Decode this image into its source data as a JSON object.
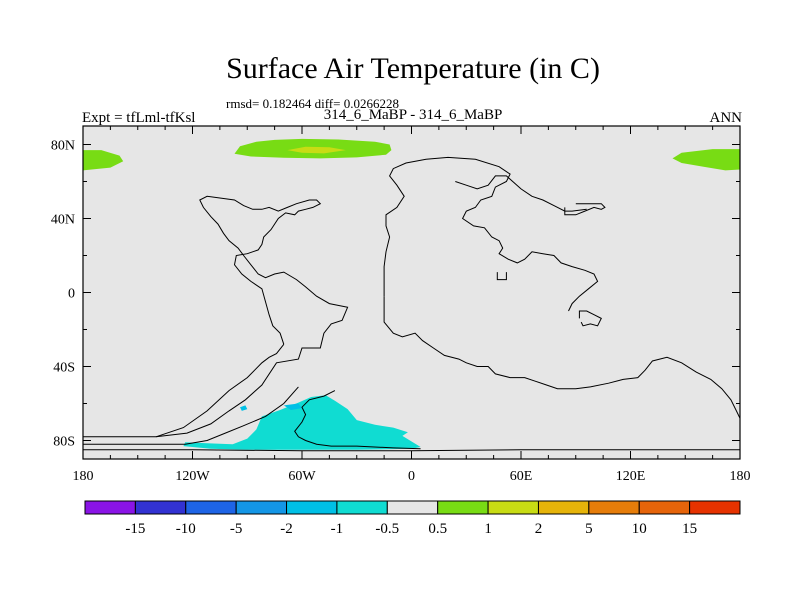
{
  "chart_data": {
    "type": "heatmap",
    "title": "Surface Air Temperature (in C)",
    "stats_label": "rmsd= 0.182464 diff= 0.0266228",
    "left_label": "Expt = tfLml-tfKsl",
    "center_label": "314_6_MaBP - 314_6_MaBP",
    "right_label": "ANN",
    "x_range": [
      -180,
      180
    ],
    "y_range": [
      -90,
      90
    ],
    "x_ticks": [
      {
        "value": -180,
        "label": "180"
      },
      {
        "value": -120,
        "label": "120W"
      },
      {
        "value": -60,
        "label": "60W"
      },
      {
        "value": 0,
        "label": "0"
      },
      {
        "value": 60,
        "label": "60E"
      },
      {
        "value": 120,
        "label": "120E"
      },
      {
        "value": 180,
        "label": "180"
      }
    ],
    "y_ticks": [
      {
        "value": 80,
        "label": "80N"
      },
      {
        "value": 40,
        "label": "40N"
      },
      {
        "value": 0,
        "label": "0"
      },
      {
        "value": -40,
        "label": "40S"
      },
      {
        "value": -80,
        "label": "80S"
      }
    ],
    "colorbar": {
      "labels": [
        "-15",
        "-10",
        "-5",
        "-2",
        "-1",
        "-0.5",
        "0.5",
        "1",
        "2",
        "5",
        "10",
        "15"
      ],
      "colors": [
        "#8a14e6",
        "#3232d2",
        "#1e64e6",
        "#1496e6",
        "#00c0e6",
        "#10dcd2",
        "#e6e6e6",
        "#78dc14",
        "#c8dc14",
        "#e6b40a",
        "#e67d0a",
        "#e6640a",
        "#e63200"
      ]
    },
    "features": [
      {
        "name": "north-pole-warm-region",
        "level": "0.5 to 1",
        "color": "#78dc14",
        "lonlat": [
          [
            -97,
            75
          ],
          [
            -94,
            79
          ],
          [
            -85,
            81.5
          ],
          [
            -75,
            82.5
          ],
          [
            -60,
            83
          ],
          [
            -40,
            82.7
          ],
          [
            -20,
            81.5
          ],
          [
            -12,
            80
          ],
          [
            -11,
            77
          ],
          [
            -14,
            74.5
          ],
          [
            -30,
            73
          ],
          [
            -50,
            72.5
          ],
          [
            -70,
            72.8
          ],
          [
            -88,
            73.5
          ]
        ]
      },
      {
        "name": "north-pole-warm-core",
        "level": "1 to 2",
        "color": "#c8dc14",
        "lonlat": [
          [
            -68,
            77
          ],
          [
            -58,
            78.8
          ],
          [
            -45,
            78.5
          ],
          [
            -36,
            77
          ],
          [
            -48,
            75.2
          ],
          [
            -60,
            75.5
          ]
        ]
      },
      {
        "name": "dateline-west-warm-region",
        "level": "0.5 to 1",
        "color": "#78dc14",
        "lonlat": [
          [
            -180,
            77
          ],
          [
            -170,
            77
          ],
          [
            -160,
            74
          ],
          [
            -158,
            71
          ],
          [
            -165,
            67.5
          ],
          [
            -180,
            66
          ]
        ]
      },
      {
        "name": "dateline-east-warm-region",
        "level": "0.5 to 1",
        "color": "#78dc14",
        "lonlat": [
          [
            180,
            77.5
          ],
          [
            165,
            77.5
          ],
          [
            148,
            75.5
          ],
          [
            143,
            72.5
          ],
          [
            148,
            70
          ],
          [
            160,
            68
          ],
          [
            172,
            66
          ],
          [
            180,
            66.5
          ]
        ]
      },
      {
        "name": "antarctic-cool-region",
        "level": "-1 to -0.5",
        "color": "#10dcd2",
        "lonlat": [
          [
            -124,
            -81
          ],
          [
            -112,
            -81.5
          ],
          [
            -98,
            -82
          ],
          [
            -90,
            -79
          ],
          [
            -85,
            -74
          ],
          [
            -82,
            -67
          ],
          [
            -72,
            -63.5
          ],
          [
            -62,
            -59.5
          ],
          [
            -55,
            -56.5
          ],
          [
            -47,
            -55.5
          ],
          [
            -42,
            -58.5
          ],
          [
            -35,
            -63
          ],
          [
            -30,
            -69
          ],
          [
            -20,
            -71.5
          ],
          [
            -10,
            -73
          ],
          [
            -2,
            -75.5
          ],
          [
            -5,
            -77.5
          ],
          [
            5,
            -83.5
          ],
          [
            0,
            -84.5
          ],
          [
            -30,
            -85
          ],
          [
            -60,
            -85
          ],
          [
            -90,
            -85
          ],
          [
            -110,
            -84.5
          ],
          [
            -125,
            -83
          ]
        ]
      },
      {
        "name": "antarctic-cool-core",
        "level": "-2 to -1",
        "color": "#00c0e6",
        "lonlat": [
          [
            -70,
            -61
          ],
          [
            -62,
            -60
          ],
          [
            -60,
            -62.5
          ],
          [
            -66,
            -63.5
          ]
        ]
      },
      {
        "name": "antarctic-cool-fleck",
        "level": "-2 to -1",
        "color": "#00c0e6",
        "lonlat": [
          [
            -94,
            -62
          ],
          [
            -91,
            -61
          ],
          [
            -90,
            -63
          ],
          [
            -93,
            -64
          ]
        ]
      }
    ],
    "coastlines": [
      {
        "name": "americas-outline",
        "lonlat": [
          [
            -180,
            -78
          ],
          [
            -140,
            -78
          ],
          [
            -123,
            -76
          ],
          [
            -110,
            -71
          ],
          [
            -100,
            -64
          ],
          [
            -91,
            -58
          ],
          [
            -82,
            -50
          ],
          [
            -74,
            -38
          ],
          [
            -62,
            -36
          ],
          [
            -60,
            -30
          ],
          [
            -50,
            -30
          ],
          [
            -48,
            -22
          ],
          [
            -44,
            -17
          ],
          [
            -38,
            -15
          ],
          [
            -35,
            -8
          ],
          [
            -45,
            -6
          ],
          [
            -52,
            -2
          ],
          [
            -58,
            3
          ],
          [
            -63,
            7
          ],
          [
            -70,
            11
          ],
          [
            -75,
            10
          ],
          [
            -80,
            8
          ],
          [
            -84,
            10
          ],
          [
            -88,
            15
          ],
          [
            -92,
            20
          ],
          [
            -95,
            24
          ],
          [
            -100,
            28
          ],
          [
            -103,
            32
          ],
          [
            -106,
            37
          ],
          [
            -110,
            41
          ],
          [
            -114,
            46
          ],
          [
            -116,
            50
          ],
          [
            -112,
            52
          ],
          [
            -104,
            51
          ],
          [
            -97,
            50
          ],
          [
            -92,
            47
          ],
          [
            -87,
            45
          ],
          [
            -82,
            45
          ],
          [
            -78,
            46
          ],
          [
            -73,
            44
          ],
          [
            -68,
            46
          ],
          [
            -63,
            48
          ],
          [
            -56,
            50
          ],
          [
            -52,
            50
          ],
          [
            -50,
            48
          ],
          [
            -54,
            46
          ],
          [
            -58,
            45
          ],
          [
            -62,
            44
          ],
          [
            -64,
            42
          ],
          [
            -69,
            43
          ],
          [
            -73,
            40
          ],
          [
            -75,
            37
          ],
          [
            -77,
            34
          ],
          [
            -81,
            30
          ],
          [
            -82,
            26
          ],
          [
            -84,
            23
          ],
          [
            -90,
            21
          ],
          [
            -96,
            20
          ],
          [
            -97,
            15
          ],
          [
            -93,
            10
          ],
          [
            -88,
            6
          ],
          [
            -82,
            2
          ],
          [
            -80,
            -5
          ],
          [
            -78,
            -12
          ],
          [
            -76,
            -18
          ],
          [
            -72,
            -22
          ],
          [
            -70,
            -28
          ]
        ]
      },
      {
        "name": "south-america-west-edge",
        "lonlat": [
          [
            -70,
            -28
          ],
          [
            -74,
            -33
          ],
          [
            -78,
            -35
          ],
          [
            -82,
            -38
          ],
          [
            -90,
            -46
          ],
          [
            -100,
            -53
          ],
          [
            -112,
            -64
          ],
          [
            -125,
            -73
          ],
          [
            -140,
            -78
          ]
        ]
      },
      {
        "name": "eurasia-africa-outline",
        "lonlat": [
          [
            -15,
            -2
          ],
          [
            -15,
            14
          ],
          [
            -14,
            22
          ],
          [
            -12,
            30
          ],
          [
            -14,
            36
          ],
          [
            -14,
            42
          ],
          [
            -8,
            46
          ],
          [
            -4,
            52
          ],
          [
            -8,
            58
          ],
          [
            -12,
            63
          ],
          [
            -10,
            67
          ],
          [
            -3,
            70
          ],
          [
            8,
            72
          ],
          [
            20,
            73
          ],
          [
            35,
            72
          ],
          [
            48,
            68
          ],
          [
            54,
            64
          ],
          [
            52,
            60
          ],
          [
            46,
            57
          ],
          [
            44,
            52
          ],
          [
            38,
            50
          ],
          [
            35,
            46
          ],
          [
            30,
            44
          ],
          [
            28,
            40
          ],
          [
            34,
            36
          ],
          [
            40,
            35
          ],
          [
            44,
            30
          ],
          [
            48,
            28
          ],
          [
            50,
            24
          ],
          [
            48,
            21
          ],
          [
            53,
            18
          ],
          [
            58,
            16
          ],
          [
            62,
            18
          ],
          [
            66,
            22
          ],
          [
            72,
            21
          ],
          [
            78,
            20
          ],
          [
            82,
            16
          ],
          [
            88,
            14
          ],
          [
            95,
            12
          ],
          [
            100,
            10
          ],
          [
            102,
            6
          ],
          [
            97,
            2
          ],
          [
            92,
            -2
          ],
          [
            88,
            -6
          ],
          [
            86,
            -10
          ]
        ]
      },
      {
        "name": "africa-south-edge",
        "lonlat": [
          [
            -15,
            -2
          ],
          [
            -15,
            -16
          ],
          [
            -10,
            -22
          ],
          [
            -5,
            -24
          ],
          [
            2,
            -22
          ],
          [
            6,
            -26
          ],
          [
            12,
            -30
          ],
          [
            18,
            -34
          ],
          [
            26,
            -36
          ],
          [
            30,
            -38
          ],
          [
            36,
            -40
          ],
          [
            42,
            -40
          ],
          [
            46,
            -44
          ],
          [
            54,
            -46
          ],
          [
            62,
            -46
          ],
          [
            68,
            -48
          ],
          [
            74,
            -50
          ],
          [
            80,
            -52
          ],
          [
            90,
            -52
          ],
          [
            98,
            -51
          ],
          [
            108,
            -49
          ],
          [
            116,
            -47
          ],
          [
            124,
            -46
          ],
          [
            128,
            -42
          ],
          [
            132,
            -37
          ],
          [
            140,
            -35
          ],
          [
            148,
            -38
          ],
          [
            156,
            -43
          ],
          [
            164,
            -47
          ],
          [
            170,
            -52
          ],
          [
            175,
            -58
          ],
          [
            178,
            -64
          ],
          [
            180,
            -68
          ]
        ]
      },
      {
        "name": "east-asia-outline",
        "lonlat": [
          [
            24,
            60
          ],
          [
            30,
            58
          ],
          [
            36,
            56
          ],
          [
            42,
            58
          ],
          [
            46,
            63
          ],
          [
            52,
            63
          ],
          [
            60,
            56
          ],
          [
            66,
            52
          ],
          [
            72,
            50
          ],
          [
            78,
            47
          ],
          [
            84,
            44
          ],
          [
            88,
            44
          ],
          [
            96,
            45
          ]
        ]
      },
      {
        "name": "asia-island",
        "lonlat": [
          [
            84,
            46
          ],
          [
            84,
            42
          ],
          [
            90,
            42
          ],
          [
            95,
            44
          ],
          [
            100,
            46
          ],
          [
            104,
            45
          ],
          [
            106,
            46
          ],
          [
            104,
            48
          ],
          [
            96,
            48
          ],
          [
            90,
            48
          ]
        ]
      },
      {
        "name": "southeast-island",
        "lonlat": [
          [
            92,
            -14
          ],
          [
            92,
            -10
          ],
          [
            96,
            -10
          ],
          [
            100,
            -12
          ],
          [
            104,
            -14
          ],
          [
            102,
            -18
          ],
          [
            98,
            -17
          ],
          [
            94,
            -18
          ],
          [
            93,
            -16
          ]
        ]
      },
      {
        "name": "mid-atlantic-islet",
        "lonlat": [
          [
            47,
            11
          ],
          [
            47,
            7
          ],
          [
            52,
            7
          ],
          [
            52,
            11
          ]
        ]
      },
      {
        "name": "antarctic-peninsula-outline",
        "lonlat": [
          [
            -62,
            -51
          ],
          [
            -70,
            -60
          ],
          [
            -80,
            -67
          ],
          [
            -92,
            -72
          ],
          [
            -102,
            -76
          ],
          [
            -112,
            -80
          ],
          [
            -124,
            -82
          ],
          [
            -180,
            -82
          ]
        ]
      },
      {
        "name": "antarctic-inner-outline",
        "lonlat": [
          [
            -42,
            -53
          ],
          [
            -48,
            -56
          ],
          [
            -56,
            -58
          ],
          [
            -60,
            -62
          ],
          [
            -58,
            -66
          ],
          [
            -60,
            -70
          ],
          [
            -64,
            -75
          ],
          [
            -62,
            -78
          ],
          [
            -58,
            -80
          ],
          [
            -52,
            -82
          ],
          [
            -44,
            -83
          ],
          [
            -30,
            -83
          ],
          [
            -10,
            -84
          ],
          [
            5,
            -84.5
          ]
        ]
      },
      {
        "name": "antarctic-coast",
        "lonlat": [
          [
            -180,
            -85
          ],
          [
            -120,
            -85
          ],
          [
            -60,
            -85.5
          ],
          [
            0,
            -85.5
          ],
          [
            60,
            -85
          ],
          [
            120,
            -85
          ],
          [
            180,
            -85
          ]
        ]
      }
    ]
  }
}
